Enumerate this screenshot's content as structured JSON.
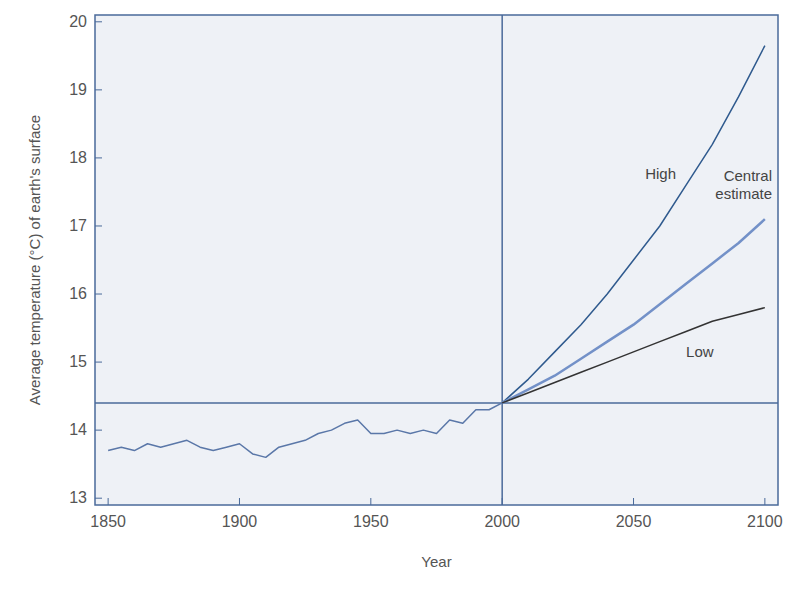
{
  "chart_data": {
    "type": "line",
    "x_label": "Year",
    "y_label": "Average temperature (°C) of earth's surface",
    "xlim": [
      1845,
      2105
    ],
    "ylim": [
      12.9,
      20.1
    ],
    "xticks": [
      1850,
      1900,
      1950,
      2000,
      2050,
      2100
    ],
    "yticks": [
      13,
      14,
      15,
      16,
      17,
      18,
      19,
      20
    ],
    "vlines": [
      2000
    ],
    "hlines": [
      14.4
    ],
    "series": [
      {
        "color": "#5a77a8",
        "x": [
          1850,
          1855,
          1860,
          1865,
          1870,
          1875,
          1880,
          1885,
          1890,
          1895,
          1900,
          1905,
          1910,
          1915,
          1920,
          1925,
          1930,
          1935,
          1940,
          1945,
          1950,
          1955,
          1960,
          1965,
          1970,
          1975,
          1980,
          1985,
          1990,
          1995,
          2000
        ],
        "values": [
          13.7,
          13.75,
          13.7,
          13.8,
          13.75,
          13.8,
          13.85,
          13.75,
          13.7,
          13.75,
          13.8,
          13.65,
          13.6,
          13.75,
          13.8,
          13.85,
          13.95,
          14.0,
          14.1,
          14.15,
          13.95,
          13.95,
          14.0,
          13.95,
          14.0,
          13.95,
          14.15,
          14.1,
          14.3,
          14.3,
          14.4
        ]
      },
      {
        "name": "High",
        "color": "#2f5a8e",
        "x": [
          2000,
          2010,
          2020,
          2030,
          2040,
          2050,
          2060,
          2070,
          2080,
          2090,
          2100
        ],
        "values": [
          14.4,
          14.75,
          15.15,
          15.55,
          16.0,
          16.5,
          17.0,
          17.6,
          18.2,
          18.9,
          19.65
        ]
      },
      {
        "name": "Central estimate",
        "color": "#7391c8",
        "x": [
          2000,
          2010,
          2020,
          2030,
          2040,
          2050,
          2060,
          2070,
          2080,
          2090,
          2100
        ],
        "values": [
          14.4,
          14.6,
          14.8,
          15.05,
          15.3,
          15.55,
          15.85,
          16.15,
          16.45,
          16.75,
          17.1
        ]
      },
      {
        "name": "Low",
        "color": "#333333",
        "x": [
          2000,
          2010,
          2020,
          2030,
          2040,
          2050,
          2060,
          2070,
          2080,
          2090,
          2100
        ],
        "values": [
          14.4,
          14.55,
          14.7,
          14.85,
          15.0,
          15.15,
          15.3,
          15.45,
          15.6,
          15.7,
          15.8
        ]
      }
    ]
  }
}
